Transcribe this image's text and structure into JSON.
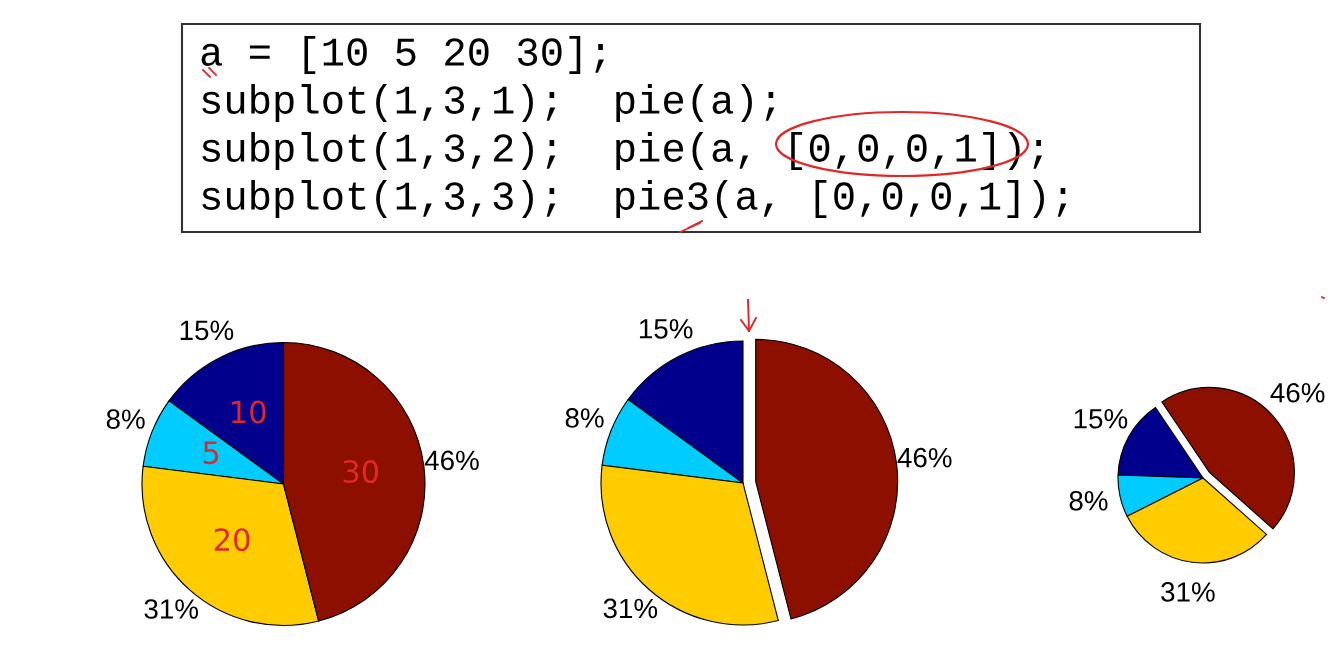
{
  "chart_data": [
    {
      "type": "other",
      "annotations": [
        "a = [10 5 20 30];",
        "subplot(1,3,1);  pie(a);",
        "subplot(1,3,2);  pie(a, [0,0,0,1]);",
        "subplot(1,3,3);  pie3(a, [0,0,0,1]);"
      ]
    },
    {
      "type": "pie",
      "categories": [
        null,
        null,
        null,
        null
      ],
      "values": [
        15,
        8,
        31,
        46
      ],
      "colors": [
        "#00008c",
        "#00ccff",
        "#ffcc00",
        "#8c0f00"
      ],
      "value_labels": [
        "15%",
        "8%",
        "31%",
        "46%"
      ],
      "annotations": [
        "10",
        "5",
        "20",
        "30"
      ]
    },
    {
      "type": "pie",
      "categories": [
        null,
        null,
        null,
        null
      ],
      "values": [
        15,
        8,
        31,
        46
      ],
      "colors": [
        "#00008c",
        "#00ccff",
        "#ffcc00",
        "#8c0f00"
      ],
      "value_labels": [
        "15%",
        "8%",
        "31%",
        "46%"
      ]
    },
    {
      "type": "pie",
      "categories": [
        null,
        null,
        null,
        null
      ],
      "values": [
        15,
        8,
        31,
        46
      ],
      "colors": [
        "#00008c",
        "#00ccff",
        "#ffcc00",
        "#8c0f00"
      ],
      "value_labels": [
        "15%",
        "8%",
        "31%",
        "46%"
      ]
    }
  ]
}
